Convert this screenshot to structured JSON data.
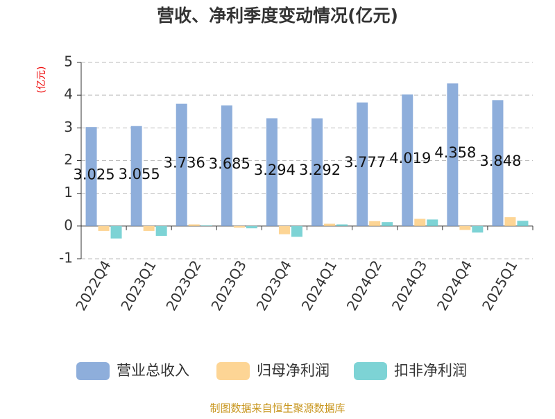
{
  "chart_data": {
    "type": "bar",
    "title": "营收、净利季度变动情况(亿元)",
    "y_label": "(亿元)",
    "source": "制图数据来自恒生聚源数据库",
    "categories": [
      "2022Q4",
      "2023Q1",
      "2023Q2",
      "2023Q3",
      "2023Q4",
      "2024Q1",
      "2024Q2",
      "2024Q3",
      "2024Q4",
      "2025Q1"
    ],
    "series": [
      {
        "name": "营业总收入",
        "color": "#8eaedb",
        "values": [
          3.025,
          3.055,
          3.736,
          3.685,
          3.294,
          3.292,
          3.777,
          4.019,
          4.358,
          3.848
        ],
        "show_labels": true
      },
      {
        "name": "归母净利润",
        "color": "#fdd595",
        "values": [
          -0.15,
          -0.15,
          0.05,
          -0.05,
          -0.25,
          0.07,
          0.15,
          0.22,
          -0.12,
          0.27
        ]
      },
      {
        "name": "扣非净利润",
        "color": "#7dd3d5",
        "values": [
          -0.38,
          -0.3,
          0.02,
          -0.07,
          -0.33,
          0.05,
          0.12,
          0.2,
          -0.2,
          0.16
        ]
      }
    ],
    "ylim": [
      -1,
      5
    ],
    "yticks": [
      -1,
      0,
      1,
      2,
      3,
      4,
      5
    ],
    "grid": true,
    "legend": "bottom"
  }
}
